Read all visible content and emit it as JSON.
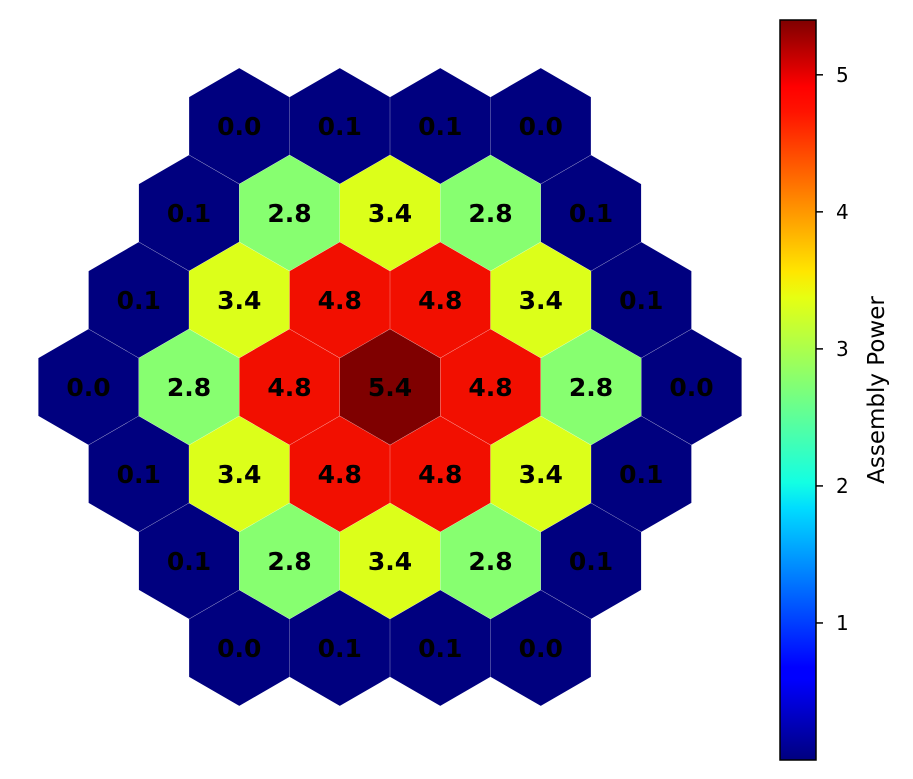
{
  "chart_data": {
    "type": "heatmap",
    "layout": "hexagonal",
    "colormap": "jet",
    "value_range": [
      0.0,
      5.4
    ],
    "rows": [
      [
        0.0,
        0.1,
        0.1,
        0.0
      ],
      [
        0.1,
        2.8,
        3.4,
        2.8,
        0.1
      ],
      [
        0.1,
        3.4,
        4.8,
        4.8,
        3.4,
        0.1
      ],
      [
        0.0,
        2.8,
        4.8,
        5.4,
        4.8,
        2.8,
        0.0
      ],
      [
        0.1,
        3.4,
        4.8,
        4.8,
        3.4,
        0.1
      ],
      [
        0.1,
        2.8,
        3.4,
        2.8,
        0.1
      ],
      [
        0.0,
        0.1,
        0.1,
        0.0
      ]
    ],
    "colorbar": {
      "label": "Assembly Power",
      "ticks": [
        1,
        2,
        3,
        4,
        5
      ]
    }
  },
  "colors": {
    "0.0": "#00007f",
    "0.1": "#00007f",
    "2.8": "#87ff70",
    "3.4": "#dcff1a",
    "4.8": "#f20f00",
    "5.4": "#7f0000"
  }
}
